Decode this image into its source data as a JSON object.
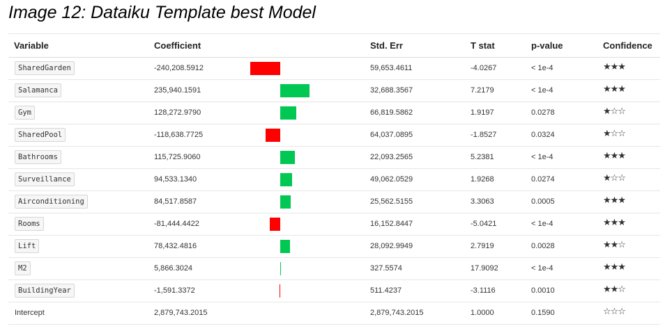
{
  "title": "Image 12: Dataiku Template best Model",
  "headers": {
    "variable": "Variable",
    "coefficient": "Coefficient",
    "std_err": "Std. Err",
    "t_stat": "T stat",
    "p_value": "p-value",
    "confidence": "Confidence"
  },
  "colors": {
    "positive": "#00c853",
    "negative": "#ff0000"
  },
  "bar_scale_max": 240208.5912,
  "rows": [
    {
      "variable": "SharedGarden",
      "coefficient": "-240,208.5912",
      "coef_value": -240208.5912,
      "std_err": "59,653.4611",
      "t_stat": "-4.0267",
      "p_value": "< 1e-4",
      "confidence": "★★★",
      "tagged": true
    },
    {
      "variable": "Salamanca",
      "coefficient": "235,940.1591",
      "coef_value": 235940.1591,
      "std_err": "32,688.3567",
      "t_stat": "7.2179",
      "p_value": "< 1e-4",
      "confidence": "★★★",
      "tagged": true
    },
    {
      "variable": "Gym",
      "coefficient": "128,272.9790",
      "coef_value": 128272.979,
      "std_err": "66,819.5862",
      "t_stat": "1.9197",
      "p_value": "0.0278",
      "confidence": "★☆☆",
      "tagged": true
    },
    {
      "variable": "SharedPool",
      "coefficient": "-118,638.7725",
      "coef_value": -118638.7725,
      "std_err": "64,037.0895",
      "t_stat": "-1.8527",
      "p_value": "0.0324",
      "confidence": "★☆☆",
      "tagged": true
    },
    {
      "variable": "Bathrooms",
      "coefficient": "115,725.9060",
      "coef_value": 115725.906,
      "std_err": "22,093.2565",
      "t_stat": "5.2381",
      "p_value": "< 1e-4",
      "confidence": "★★★",
      "tagged": true
    },
    {
      "variable": "Surveillance",
      "coefficient": "94,533.1340",
      "coef_value": 94533.134,
      "std_err": "49,062.0529",
      "t_stat": "1.9268",
      "p_value": "0.0274",
      "confidence": "★☆☆",
      "tagged": true
    },
    {
      "variable": "Airconditioning",
      "coefficient": "84,517.8587",
      "coef_value": 84517.8587,
      "std_err": "25,562.5155",
      "t_stat": "3.3063",
      "p_value": "0.0005",
      "confidence": "★★★",
      "tagged": true
    },
    {
      "variable": "Rooms",
      "coefficient": "-81,444.4422",
      "coef_value": -81444.4422,
      "std_err": "16,152.8447",
      "t_stat": "-5.0421",
      "p_value": "< 1e-4",
      "confidence": "★★★",
      "tagged": true
    },
    {
      "variable": "Lift",
      "coefficient": "78,432.4816",
      "coef_value": 78432.4816,
      "std_err": "28,092.9949",
      "t_stat": "2.7919",
      "p_value": "0.0028",
      "confidence": "★★☆",
      "tagged": true
    },
    {
      "variable": "M2",
      "coefficient": "5,866.3024",
      "coef_value": 5866.3024,
      "std_err": "327.5574",
      "t_stat": "17.9092",
      "p_value": "< 1e-4",
      "confidence": "★★★",
      "tagged": true
    },
    {
      "variable": "BuildingYear",
      "coefficient": "-1,591.3372",
      "coef_value": -1591.3372,
      "std_err": "511.4237",
      "t_stat": "-3.1116",
      "p_value": "0.0010",
      "confidence": "★★☆",
      "tagged": true
    },
    {
      "variable": "Intercept",
      "coefficient": "2,879,743.2015",
      "coef_value": null,
      "std_err": "2,879,743.2015",
      "t_stat": "1.0000",
      "p_value": "0.1590",
      "confidence": "☆☆☆",
      "tagged": false
    }
  ]
}
